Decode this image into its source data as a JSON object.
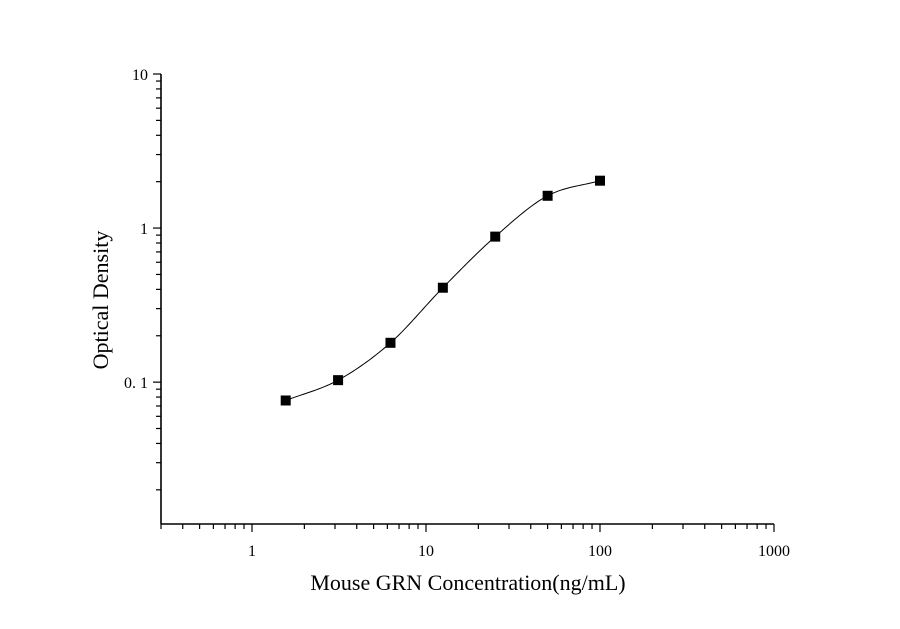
{
  "chart_data": {
    "type": "scatter",
    "title": "",
    "xlabel": "Mouse GRN Concentration(ng/mL)",
    "ylabel": "Optical Density",
    "x_scale": "log",
    "y_scale": "log",
    "xlim": [
      0.3,
      1000
    ],
    "ylim": [
      0.012,
      10
    ],
    "x_ticks": [
      1,
      10,
      100,
      1000
    ],
    "x_tick_labels": [
      "1",
      "10",
      "100",
      "1000"
    ],
    "y_ticks": [
      0.1,
      1,
      10
    ],
    "y_tick_labels": [
      "0. 1",
      "1",
      "10"
    ],
    "grid": false,
    "legend": "none",
    "series": [
      {
        "x": [
          1.5625,
          3.125,
          6.25,
          12.5,
          25,
          50,
          100
        ],
        "y": [
          0.076,
          0.103,
          0.18,
          0.41,
          0.88,
          1.62,
          2.03
        ],
        "marker": "square",
        "fit_curve": true
      }
    ],
    "colors": {
      "marker": "#000000",
      "curve": "#000000",
      "axis": "#000000"
    }
  }
}
